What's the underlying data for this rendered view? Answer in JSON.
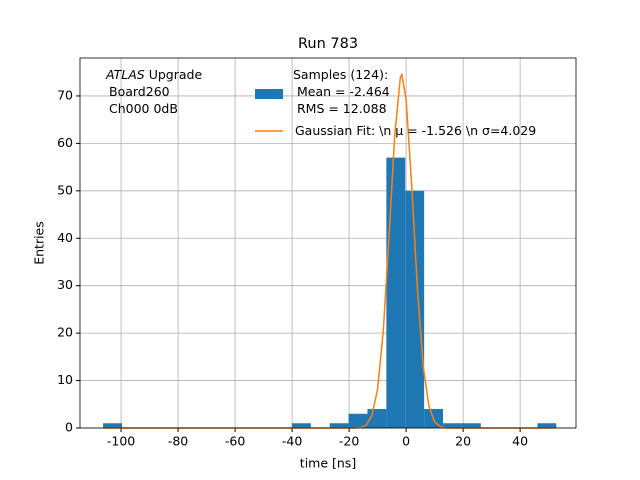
{
  "chart_data": {
    "type": "histogram",
    "title": "Run 783",
    "xlabel": "time [ns]",
    "ylabel": "Entries",
    "annotation": {
      "experiment": "ATLAS",
      "text": "Upgrade",
      "lines": [
        "Board260",
        "Ch000 0dB"
      ]
    },
    "bins": [
      -106.3,
      -99.675,
      -93.05,
      -86.425,
      -79.8,
      -73.175,
      -66.55,
      -59.925,
      -53.3,
      -46.675,
      -40.05,
      -33.425,
      -26.8,
      -20.175,
      -13.55,
      -6.925,
      -0.3,
      6.325,
      12.95,
      19.575,
      26.2,
      32.825,
      39.45,
      46.075,
      52.7
    ],
    "series": [
      {
        "name": "Samples (124):\n Mean = -2.464\n RMS = 12.088",
        "color": "#1f77b4",
        "values": [
          1,
          0,
          0,
          0,
          0,
          0,
          0,
          0,
          0,
          0,
          1,
          0,
          1,
          3,
          4,
          57,
          50,
          4,
          1,
          1,
          0,
          0,
          0,
          1
        ]
      },
      {
        "name": "Gaussian Fit: \\n μ = -1.526 \\n σ=4.029",
        "color": "#ff7f0e",
        "type": "line",
        "x": [
          -106,
          -18,
          -16,
          -14,
          -12,
          -10,
          -8,
          -6,
          -4,
          -2,
          -1.5,
          0,
          2,
          4,
          6,
          8,
          10,
          12,
          14,
          16,
          52
        ],
        "values": [
          0,
          0,
          0.1,
          0.6,
          2.6,
          8.2,
          20.5,
          40.3,
          61.7,
          74,
          74.5,
          69.3,
          50.8,
          29.1,
          13,
          4.6,
          1.3,
          0.3,
          0,
          0,
          0
        ]
      }
    ],
    "xlim": [
      -114.4,
      59.6
    ],
    "ylim": [
      0,
      78
    ],
    "xticks": [
      -100,
      -80,
      -60,
      -40,
      -20,
      0,
      20,
      40
    ],
    "yticks": [
      0,
      10,
      20,
      30,
      40,
      50,
      60,
      70
    ],
    "grid": true
  }
}
